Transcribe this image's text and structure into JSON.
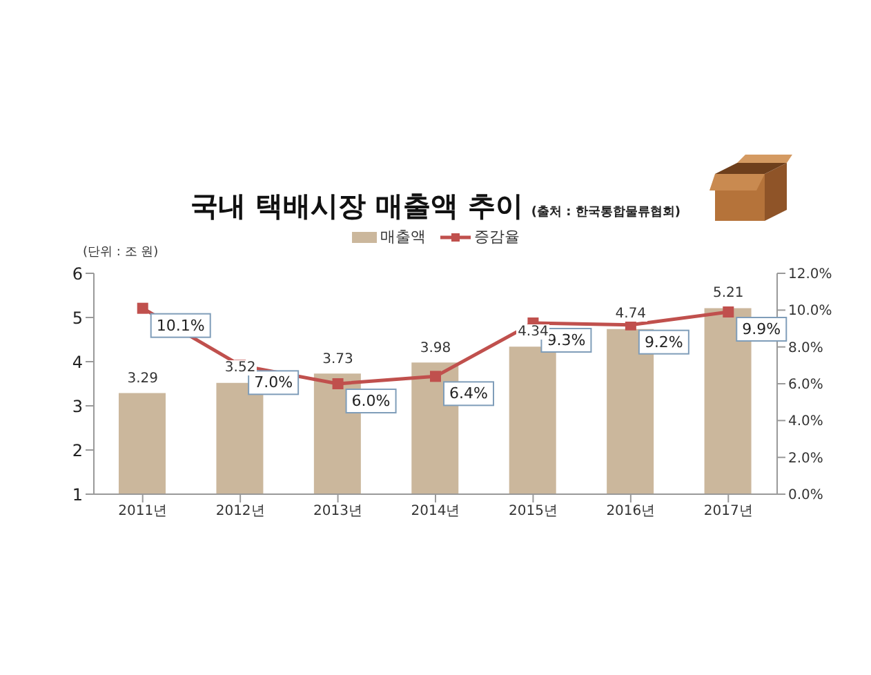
{
  "chart_data": {
    "type": "bar",
    "title": "국내 택배시장 매출액 추이",
    "subtitle": "(출처 : 한국통합물류협회)",
    "ylabel": "(단위 : 조 원)",
    "categories": [
      "2011년",
      "2012년",
      "2013년",
      "2014년",
      "2015년",
      "2016년",
      "2017년"
    ],
    "series": [
      {
        "name": "매출액",
        "color": "#cbb79c",
        "values": [
          3.29,
          3.52,
          3.73,
          3.98,
          4.34,
          4.74,
          5.21
        ],
        "value_labels": [
          "3.29",
          "3.52",
          "3.73",
          "3.98",
          "4.34",
          "4.74",
          "5.21"
        ]
      },
      {
        "name": "증감율",
        "type": "line",
        "axis": "y2",
        "color": "#c0504d",
        "values": [
          10.1,
          7.0,
          6.0,
          6.4,
          9.3,
          9.2,
          9.9
        ],
        "value_labels": [
          "10.1%",
          "7.0%",
          "6.0%",
          "6.4%",
          "9.3%",
          "9.2%",
          "9.9%"
        ]
      }
    ],
    "ylim": [
      1,
      6
    ],
    "yticks": [
      1,
      2,
      3,
      4,
      5,
      6
    ],
    "y2lim": [
      0,
      12
    ],
    "y2ticks": [
      {
        "value": 0,
        "label": "0.0%"
      },
      {
        "value": 2,
        "label": "2.0%"
      },
      {
        "value": 4,
        "label": "4.0%"
      },
      {
        "value": 6,
        "label": "6.0%"
      },
      {
        "value": 8,
        "label": "8.0%"
      },
      {
        "value": 10,
        "label": "10.0%"
      },
      {
        "value": 12,
        "label": "12.0%"
      }
    ],
    "legend": "top",
    "marker": "square",
    "grid": false
  }
}
